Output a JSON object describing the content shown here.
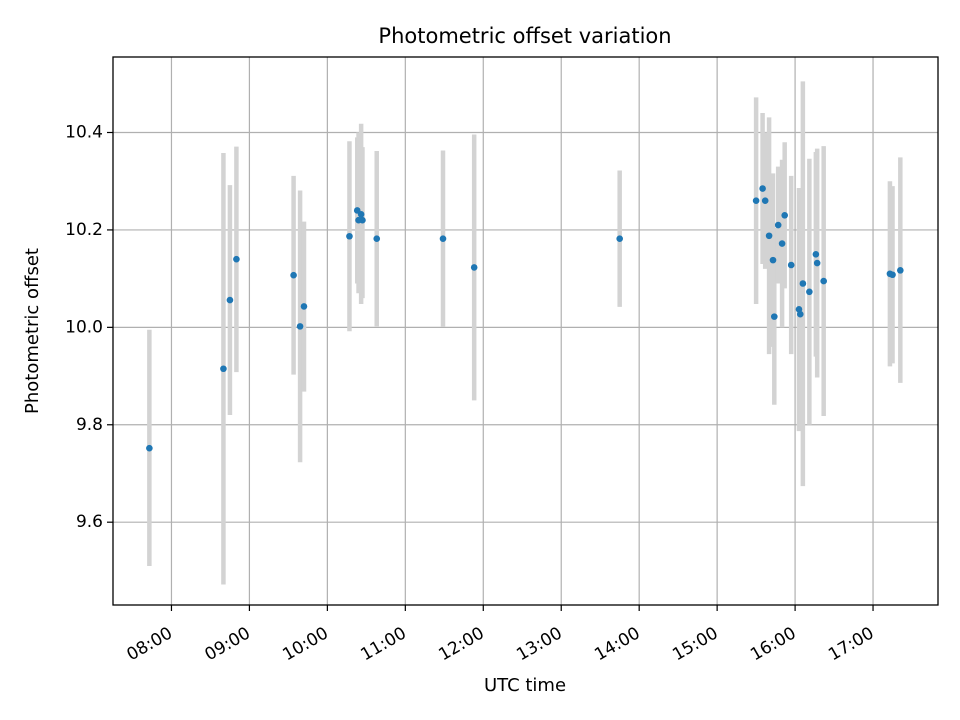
{
  "chart_data": {
    "type": "scatter",
    "title": "Photometric offset variation",
    "xlabel": "UTC time",
    "ylabel": "Photometric offset",
    "x_tick_labels": [
      "08:00",
      "09:00",
      "10:00",
      "11:00",
      "12:00",
      "13:00",
      "14:00",
      "15:00",
      "16:00",
      "17:00"
    ],
    "y_tick_labels": [
      "9.6",
      "9.8",
      "10.0",
      "10.2",
      "10.4"
    ],
    "xlim": [
      "07:15",
      "17:50"
    ],
    "ylim": [
      9.43,
      10.555
    ],
    "grid": true,
    "colors": {
      "point": "#1f77b4",
      "errorbar": "#d3d3d3",
      "grid": "#b0b0b0"
    },
    "points": [
      {
        "x": "07:43",
        "y": 9.752,
        "err_low": 9.51,
        "err_high": 9.995
      },
      {
        "x": "08:40",
        "y": 9.915,
        "err_low": 9.472,
        "err_high": 10.358
      },
      {
        "x": "08:45",
        "y": 10.056,
        "err_low": 9.82,
        "err_high": 10.292
      },
      {
        "x": "08:50",
        "y": 10.14,
        "err_low": 9.908,
        "err_high": 10.371
      },
      {
        "x": "09:34",
        "y": 10.107,
        "err_low": 9.903,
        "err_high": 10.311
      },
      {
        "x": "09:39",
        "y": 10.002,
        "err_low": 9.723,
        "err_high": 10.281
      },
      {
        "x": "09:42",
        "y": 10.043,
        "err_low": 9.868,
        "err_high": 10.217
      },
      {
        "x": "10:17",
        "y": 10.187,
        "err_low": 9.992,
        "err_high": 10.382
      },
      {
        "x": "10:23",
        "y": 10.24,
        "err_low": 10.09,
        "err_high": 10.39
      },
      {
        "x": "10:24",
        "y": 10.22,
        "err_low": 10.07,
        "err_high": 10.4
      },
      {
        "x": "10:26",
        "y": 10.232,
        "err_low": 10.048,
        "err_high": 10.418
      },
      {
        "x": "10:27",
        "y": 10.22,
        "err_low": 10.06,
        "err_high": 10.37
      },
      {
        "x": "10:38",
        "y": 10.182,
        "err_low": 10.002,
        "err_high": 10.362
      },
      {
        "x": "11:29",
        "y": 10.182,
        "err_low": 10.001,
        "err_high": 10.363
      },
      {
        "x": "11:53",
        "y": 10.123,
        "err_low": 9.85,
        "err_high": 10.396
      },
      {
        "x": "13:45",
        "y": 10.182,
        "err_low": 10.042,
        "err_high": 10.322
      },
      {
        "x": "15:30",
        "y": 10.26,
        "err_low": 10.048,
        "err_high": 10.472
      },
      {
        "x": "15:35",
        "y": 10.285,
        "err_low": 10.13,
        "err_high": 10.44
      },
      {
        "x": "15:37",
        "y": 10.26,
        "err_low": 10.12,
        "err_high": 10.4
      },
      {
        "x": "15:40",
        "y": 10.188,
        "err_low": 9.945,
        "err_high": 10.431
      },
      {
        "x": "15:43",
        "y": 10.138,
        "err_low": 9.96,
        "err_high": 10.316
      },
      {
        "x": "15:44",
        "y": 10.022,
        "err_low": 9.841,
        "err_high": 10.204
      },
      {
        "x": "15:47",
        "y": 10.21,
        "err_low": 10.09,
        "err_high": 10.33
      },
      {
        "x": "15:50",
        "y": 10.172,
        "err_low": 10.0,
        "err_high": 10.344
      },
      {
        "x": "15:52",
        "y": 10.23,
        "err_low": 10.08,
        "err_high": 10.38
      },
      {
        "x": "15:57",
        "y": 10.128,
        "err_low": 9.945,
        "err_high": 10.311
      },
      {
        "x": "16:03",
        "y": 10.037,
        "err_low": 9.787,
        "err_high": 10.286
      },
      {
        "x": "16:04",
        "y": 10.027,
        "err_low": 9.795,
        "err_high": 10.259
      },
      {
        "x": "16:06",
        "y": 10.09,
        "err_low": 9.674,
        "err_high": 10.505
      },
      {
        "x": "16:11",
        "y": 10.073,
        "err_low": 9.8,
        "err_high": 10.346
      },
      {
        "x": "16:16",
        "y": 10.15,
        "err_low": 9.94,
        "err_high": 10.36
      },
      {
        "x": "16:17",
        "y": 10.132,
        "err_low": 9.897,
        "err_high": 10.367
      },
      {
        "x": "16:22",
        "y": 10.095,
        "err_low": 9.818,
        "err_high": 10.372
      },
      {
        "x": "17:13",
        "y": 10.11,
        "err_low": 9.92,
        "err_high": 10.3
      },
      {
        "x": "17:15",
        "y": 10.108,
        "err_low": 9.926,
        "err_high": 10.29
      },
      {
        "x": "17:21",
        "y": 10.117,
        "err_low": 9.886,
        "err_high": 10.349
      }
    ]
  }
}
